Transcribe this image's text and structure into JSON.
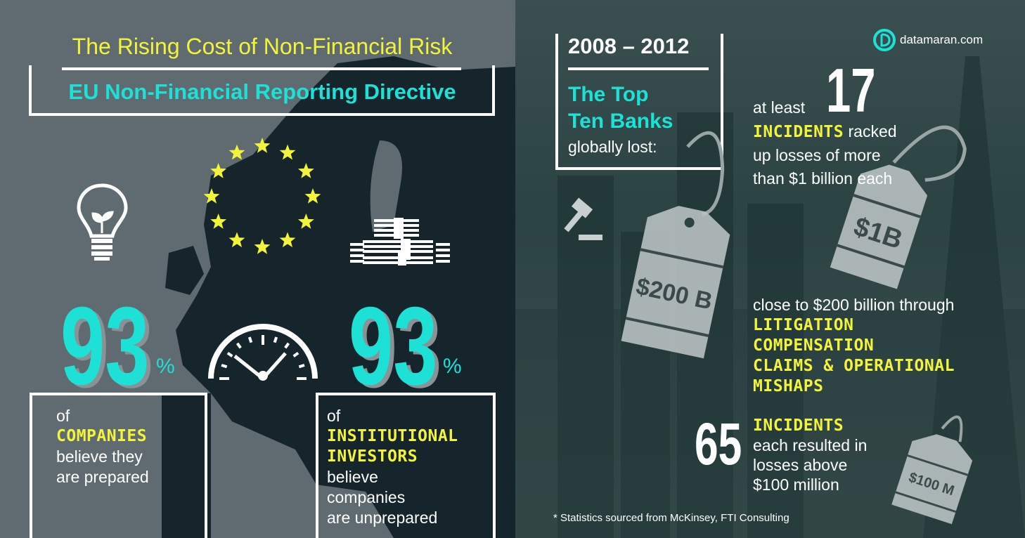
{
  "left": {
    "title": "The Rising Cost of Non-Financial Risk",
    "subtitle": "EU Non-Financial Reporting Directive",
    "stat1": {
      "value": "93",
      "unit": "%",
      "pre": "of",
      "highlight": "COMPANIES",
      "lines": [
        "believe they",
        "are prepared"
      ]
    },
    "stat2": {
      "value": "93",
      "unit": "%",
      "pre": "of",
      "highlight": [
        "INSTITUTIONAL",
        "INVESTORS"
      ],
      "lines": [
        "believe",
        "companies",
        "are unprepared"
      ]
    },
    "icons": [
      "lightbulb-plant-icon",
      "eu-stars-icon",
      "gauge-icon",
      "money-stack-icon"
    ]
  },
  "right": {
    "years": "2008 – 2012",
    "heading": [
      "The Top",
      "Ten Banks"
    ],
    "heading_sub": "globally lost:",
    "brand": "datamaran.com",
    "fact1": {
      "pre": "at least",
      "number": "17",
      "highlight": "INCIDENTS",
      "rest": "racked",
      "lines": [
        "up losses of more",
        "than $1 billion each"
      ]
    },
    "fact2": {
      "pre": "close to $200 billion through",
      "highlight": [
        "LITIGATION",
        "COMPENSATION",
        "CLAIMS & OPERATIONAL",
        "MISHAPS"
      ]
    },
    "fact3": {
      "number": "65",
      "highlight": "INCIDENTS",
      "lines": [
        "each resulted in",
        "losses above",
        "$100 million"
      ]
    },
    "tags": [
      "$200 B",
      "$1B",
      "$100 M"
    ],
    "footnote": "* Statistics sourced from McKinsey, FTI Consulting"
  },
  "colors": {
    "yellow": "#f3f33a",
    "cyan": "#1de0d6",
    "left_bg": "#5f6b71",
    "map": "#15252b",
    "right_bg": "#2c4343"
  }
}
